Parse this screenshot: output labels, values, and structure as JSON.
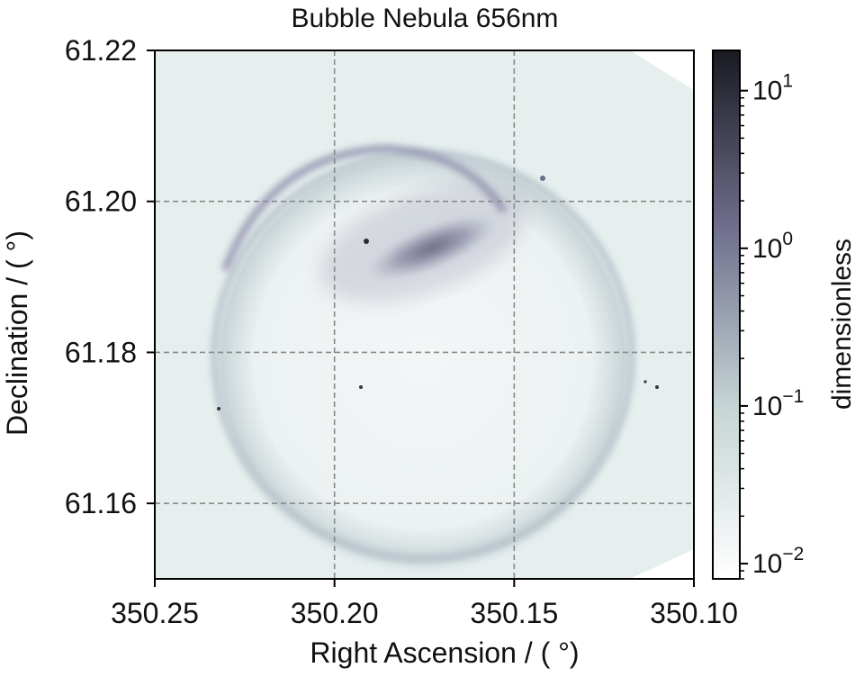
{
  "chart_data": {
    "type": "heatmap",
    "title": "Bubble Nebula 656nm",
    "xlabel": "Right Ascension / ( °)",
    "ylabel": "Declination / ( °)",
    "xlim": [
      350.25,
      350.1
    ],
    "ylim": [
      61.15,
      61.22
    ],
    "x_ticks": [
      350.25,
      350.2,
      350.15,
      350.1
    ],
    "x_tick_labels": [
      "350.25",
      "350.20",
      "350.15",
      "350.10"
    ],
    "y_ticks": [
      61.16,
      61.18,
      61.2,
      61.22
    ],
    "y_tick_labels": [
      "61.16",
      "61.18",
      "61.20",
      "61.22"
    ],
    "grid": true,
    "colorbar": {
      "label": "dimensionless",
      "scale": "log",
      "range": [
        0.008,
        18
      ],
      "ticks": [
        0.01,
        0.1,
        1,
        10
      ],
      "tick_labels": [
        {
          "base": "10",
          "exp": "−2"
        },
        {
          "base": "10",
          "exp": "−1"
        },
        {
          "base": "10",
          "exp": "0"
        },
        {
          "base": "10",
          "exp": "1"
        }
      ],
      "colormap": "bone_r",
      "colors": [
        "#ffffff",
        "#c4d3d3",
        "#6e6e8c",
        "#1a1a22"
      ]
    },
    "image_features": {
      "background_level": 0.018,
      "shell_level": 0.12,
      "filament_peak_level": 1.6,
      "shell_center": [
        350.171,
        61.184
      ],
      "colors": {
        "field": "#e6eeee",
        "shell": "#aebcc4",
        "filament": "#555570"
      }
    }
  }
}
